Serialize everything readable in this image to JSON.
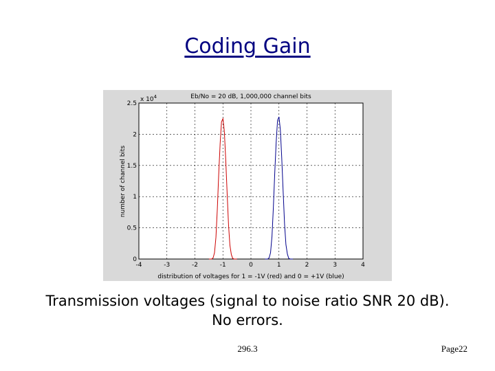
{
  "slide": {
    "title": "Coding Gain",
    "caption_line1": "Transmission voltages (signal to noise ratio SNR 20 dB).",
    "caption_line2": "No errors.",
    "footer_left": "296.3",
    "footer_right": "Page22"
  },
  "chart_data": {
    "type": "line",
    "title": "Eb/No = 20 dB, 1,000,000 channel bits",
    "xlabel": "distribution of voltages for 1 = -1V (red) and 0 = +1V (blue)",
    "ylabel": "number of channel bits",
    "y_multiplier_label": "x 10",
    "y_multiplier_exp": "4",
    "xlim": [
      -4,
      4
    ],
    "ylim": [
      0,
      2.5
    ],
    "xticks": [
      "-4",
      "-3",
      "-2",
      "-1",
      "0",
      "1",
      "2",
      "3",
      "4"
    ],
    "yticks": [
      "0",
      "0.5",
      "1",
      "1.5",
      "2",
      "2.5"
    ],
    "grid": true,
    "series": [
      {
        "color": "#cc0000",
        "x": [
          -1.5,
          -1.4,
          -1.35,
          -1.3,
          -1.25,
          -1.2,
          -1.15,
          -1.1,
          -1.05,
          -1.0,
          -0.95,
          -0.9,
          -0.85,
          -0.8,
          -0.75,
          -0.7,
          -0.65,
          -0.6,
          -0.5
        ],
        "y": [
          0,
          0,
          0.02,
          0.1,
          0.35,
          0.8,
          1.35,
          1.85,
          2.2,
          2.25,
          2.05,
          1.6,
          1.05,
          0.55,
          0.22,
          0.07,
          0.01,
          0,
          0
        ]
      },
      {
        "color": "#00008b",
        "x": [
          0.5,
          0.6,
          0.65,
          0.7,
          0.75,
          0.8,
          0.85,
          0.9,
          0.95,
          1.0,
          1.05,
          1.1,
          1.15,
          1.2,
          1.25,
          1.3,
          1.35,
          1.4,
          1.5
        ],
        "y": [
          0,
          0,
          0.02,
          0.1,
          0.36,
          0.82,
          1.37,
          1.87,
          2.22,
          2.28,
          2.07,
          1.62,
          1.07,
          0.56,
          0.23,
          0.08,
          0.01,
          0,
          0
        ]
      }
    ]
  }
}
